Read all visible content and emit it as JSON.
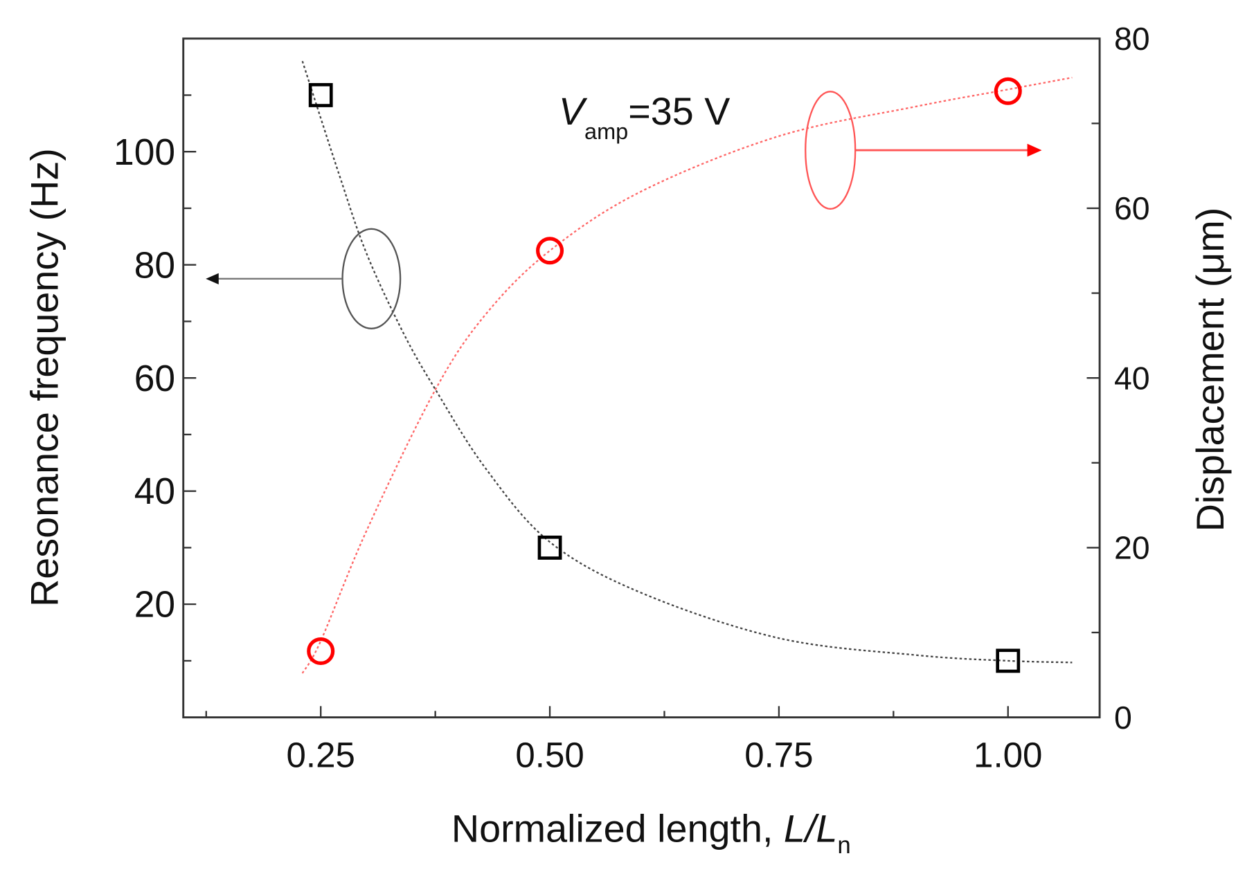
{
  "chart_data": {
    "type": "scatter",
    "title": "",
    "xlabel": "Normalized length, ",
    "xlabel_italic": "L/L",
    "xlabel_sub": "n",
    "ylabel_left": "Resonance frequency (Hz)",
    "ylabel_right": "Displacement (μm)",
    "xlim": [
      0.1,
      1.1
    ],
    "ylim_left": [
      0,
      120
    ],
    "ylim_right": [
      0,
      80
    ],
    "x_ticks": [
      0.25,
      0.5,
      0.75,
      1.0
    ],
    "x_tick_labels": [
      "0.25",
      "0.50",
      "0.75",
      "1.00"
    ],
    "y_left_ticks": [
      20,
      40,
      60,
      80,
      100
    ],
    "y_left_tick_labels": [
      "20",
      "40",
      "60",
      "80",
      "100"
    ],
    "y_right_ticks": [
      0,
      20,
      40,
      60,
      80
    ],
    "y_right_tick_labels": [
      "0",
      "20",
      "40",
      "60",
      "80"
    ],
    "grid": false,
    "annotation": {
      "italic": "V",
      "sub": "amp",
      "text": "=35 V"
    },
    "colors": {
      "frequency": "#000000",
      "displacement": "#ff0000"
    },
    "series": [
      {
        "axis": "left",
        "marker": "square",
        "color": "#000000",
        "x": [
          0.25,
          0.5,
          1.0
        ],
        "y": [
          110,
          30,
          10
        ],
        "fit": {
          "x": [
            0.23,
            0.27,
            0.3,
            0.34,
            0.375,
            0.43,
            0.5,
            0.6,
            0.75,
            0.9,
            1.0,
            1.07
          ],
          "y": [
            116,
            96,
            82,
            68,
            58,
            44,
            31,
            22,
            14,
            11,
            10,
            9.7
          ]
        }
      },
      {
        "axis": "right",
        "marker": "circle",
        "color": "#ff0000",
        "x": [
          0.25,
          0.5,
          1.0
        ],
        "y": [
          7.8,
          55,
          73.8
        ],
        "fit": {
          "x": [
            0.23,
            0.25,
            0.3,
            0.375,
            0.43,
            0.5,
            0.6,
            0.75,
            0.9,
            1.0,
            1.07
          ],
          "y": [
            5.2,
            9,
            22,
            38.6,
            47.5,
            55,
            62,
            68.5,
            72,
            74,
            75.4
          ]
        }
      }
    ]
  }
}
